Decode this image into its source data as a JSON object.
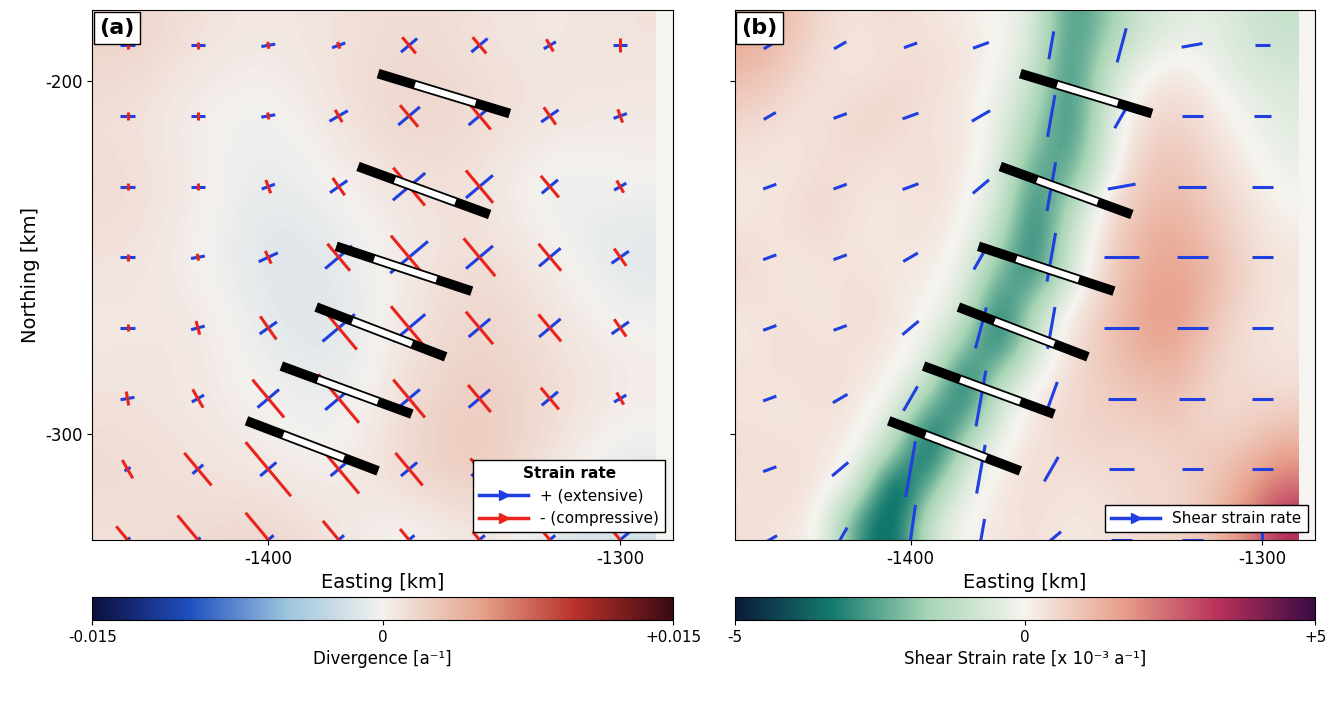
{
  "chart_data": [
    {
      "type": "heatmap",
      "title": "(a)",
      "xlabel": "Easting [km]",
      "ylabel": "Northing [km]",
      "xlim": [
        -1450,
        -1285
      ],
      "ylim": [
        -330,
        -180
      ],
      "xticks": [
        -1400,
        -1300
      ],
      "yticks": [
        -200,
        -300
      ],
      "cells": {
        "x": [
          -1440,
          -1420,
          -1400,
          -1380,
          -1360,
          -1340,
          -1320,
          -1300
        ],
        "y": [
          -190,
          -210,
          -230,
          -250,
          -270,
          -290,
          -310,
          -330
        ],
        "values": [
          [
            0.002,
            0.001,
            0.0005,
            0.001,
            0.0015,
            0.001,
            0.0005,
            0.001
          ],
          [
            0.001,
            0.0,
            -0.0005,
            0.001,
            0.002,
            0.0015,
            0.001,
            0.0005
          ],
          [
            0.0015,
            0.0005,
            -0.001,
            0.0,
            0.001,
            0.001,
            -0.001,
            0.0
          ],
          [
            0.001,
            0.0,
            -0.0015,
            -0.001,
            0.0005,
            0.0015,
            0.0005,
            -0.0015
          ],
          [
            0.0005,
            0.001,
            -0.001,
            -0.0015,
            0.001,
            0.002,
            0.001,
            0.0
          ],
          [
            0.001,
            0.0005,
            0.0,
            -0.001,
            0.0015,
            0.0025,
            0.0015,
            0.0005
          ],
          [
            0.0015,
            0.001,
            0.0005,
            0.0,
            0.002,
            0.003,
            0.001,
            -0.001
          ],
          [
            0.001,
            0.0015,
            0.002,
            0.001,
            -0.001,
            0.001,
            -0.0015,
            -0.002
          ]
        ]
      },
      "colorbar": {
        "label": "Divergence [a⁻¹]",
        "range": [
          -0.015,
          0.015
        ],
        "ticks": [
          -0.015,
          0,
          {
            "value": 0.015,
            "label": "+0.015"
          }
        ]
      },
      "vectors": {
        "x": [
          -1440,
          -1420,
          -1400,
          -1380,
          -1360,
          -1340,
          -1320,
          -1300
        ],
        "y": [
          -190,
          -210,
          -230,
          -250,
          -270,
          -290,
          -310,
          -330
        ],
        "extension": [
          [
            0.002,
            0.002,
            0.002,
            0.002,
            0.003,
            0.003,
            0.002,
            0.002
          ],
          [
            0.002,
            0.002,
            0.002,
            0.003,
            0.004,
            0.004,
            0.003,
            0.002
          ],
          [
            0.002,
            0.002,
            0.002,
            0.003,
            0.006,
            0.005,
            0.003,
            0.002
          ],
          [
            0.002,
            0.002,
            0.003,
            0.005,
            0.007,
            0.005,
            0.004,
            0.003
          ],
          [
            0.002,
            0.002,
            0.003,
            0.006,
            0.006,
            0.004,
            0.004,
            0.003
          ],
          [
            0.002,
            0.002,
            0.004,
            0.005,
            0.004,
            0.004,
            0.003,
            0.002
          ],
          [
            0.001,
            0.002,
            0.003,
            0.003,
            0.003,
            0.003,
            0.002,
            0.002
          ],
          [
            0.001,
            0.001,
            0.002,
            0.002,
            0.002,
            0.002,
            0.002,
            0.004
          ]
        ],
        "compression": [
          [
            0.001,
            0.001,
            0.001,
            0.001,
            0.003,
            0.003,
            0.002,
            0.002
          ],
          [
            0.001,
            0.001,
            0.001,
            0.002,
            0.004,
            0.005,
            0.003,
            0.002
          ],
          [
            0.001,
            0.001,
            0.002,
            0.003,
            0.007,
            0.006,
            0.004,
            0.002
          ],
          [
            0.001,
            0.001,
            0.002,
            0.005,
            0.008,
            0.007,
            0.005,
            0.003
          ],
          [
            0.001,
            0.002,
            0.004,
            0.008,
            0.008,
            0.006,
            0.005,
            0.003
          ],
          [
            0.002,
            0.003,
            0.007,
            0.009,
            0.007,
            0.005,
            0.004,
            0.002
          ],
          [
            0.003,
            0.006,
            0.01,
            0.009,
            0.006,
            0.004,
            0.003,
            0.003
          ],
          [
            0.005,
            0.009,
            0.01,
            0.007,
            0.004,
            0.003,
            0.003,
            0.003
          ]
        ],
        "azimuth": [
          [
            0,
            0,
            10,
            20,
            40,
            40,
            30,
            0
          ],
          [
            0,
            0,
            10,
            30,
            40,
            40,
            35,
            20
          ],
          [
            0,
            0,
            20,
            35,
            40,
            40,
            40,
            30
          ],
          [
            0,
            10,
            25,
            40,
            40,
            40,
            40,
            35
          ],
          [
            0,
            15,
            35,
            40,
            40,
            40,
            40,
            35
          ],
          [
            10,
            30,
            40,
            40,
            40,
            40,
            40,
            30
          ],
          [
            30,
            40,
            40,
            40,
            40,
            40,
            35,
            40
          ],
          [
            40,
            40,
            40,
            40,
            40,
            40,
            40,
            40
          ]
        ]
      },
      "profiles": [
        [
          [
            -1368.8,
            -198.0
          ],
          [
            -1331.4,
            -209.3
          ]
        ],
        [
          [
            -1374.5,
            -224.3
          ],
          [
            -1337.1,
            -237.9
          ]
        ],
        [
          [
            -1380.7,
            -246.9
          ],
          [
            -1342.2,
            -259.6
          ]
        ],
        [
          [
            -1386.4,
            -264.1
          ],
          [
            -1349.6,
            -278.2
          ]
        ],
        [
          [
            -1396.3,
            -280.8
          ],
          [
            -1359.2,
            -294.4
          ]
        ],
        [
          [
            -1406.2,
            -296.3
          ],
          [
            -1368.8,
            -310.5
          ]
        ]
      ],
      "legend": "lower right",
      "legend_title": "Strain rate",
      "series": [
        {
          "name": "+ (extensive)",
          "color": "#1f3fe0"
        },
        {
          "name": "- (compressive)",
          "color": "#e8241c"
        }
      ]
    },
    {
      "type": "heatmap",
      "title": "(b)",
      "xlabel": "Easting [km]",
      "xlim": [
        -1450,
        -1285
      ],
      "ylim": [
        -330,
        -180
      ],
      "xticks": [
        -1400,
        -1300
      ],
      "yticks": [
        -200,
        -300
      ],
      "tick_labels": "x",
      "cells": {
        "x": [
          -1445,
          -1435,
          -1425,
          -1415,
          -1405,
          -1395,
          -1385,
          -1375,
          -1365,
          -1355,
          -1345,
          -1335,
          -1325,
          -1315,
          -1305,
          -1295
        ],
        "y": [
          -185,
          -195,
          -205,
          -215,
          -225,
          -235,
          -245,
          -255,
          -265,
          -275,
          -285,
          -295,
          -305,
          -315,
          -325
        ],
        "values": [
          [
            1.5,
            1.0,
            0.5,
            0.3,
            0.5,
            0.3,
            0.2,
            0.0,
            -0.5,
            -3.0,
            -2.0,
            -0.8,
            -0.5,
            -0.3,
            -0.8,
            -1.0
          ],
          [
            1.2,
            0.8,
            0.4,
            0.2,
            0.4,
            0.5,
            0.3,
            0.0,
            -0.8,
            -3.2,
            -1.2,
            -0.3,
            0.2,
            -0.2,
            -0.6,
            -0.8
          ],
          [
            0.8,
            0.5,
            0.3,
            0.5,
            0.6,
            0.4,
            0.2,
            -0.2,
            -1.2,
            -3.3,
            -0.8,
            0.3,
            0.5,
            0.2,
            -0.3,
            -0.5
          ],
          [
            0.5,
            0.3,
            0.4,
            0.6,
            0.5,
            0.3,
            0.3,
            -0.3,
            -1.8,
            -3.2,
            -0.6,
            0.5,
            0.8,
            0.4,
            0.0,
            -0.4
          ],
          [
            0.3,
            0.2,
            0.5,
            0.4,
            0.3,
            0.5,
            0.2,
            -0.4,
            -2.6,
            -2.6,
            -0.4,
            0.8,
            1.0,
            0.6,
            0.2,
            -0.2
          ],
          [
            0.2,
            0.4,
            0.6,
            0.3,
            0.2,
            0.4,
            0.1,
            -0.6,
            -3.4,
            -1.5,
            0.3,
            1.0,
            1.2,
            0.8,
            0.4,
            0.0
          ],
          [
            0.4,
            0.3,
            0.5,
            0.2,
            0.3,
            0.3,
            0.0,
            -1.3,
            -3.6,
            -0.8,
            0.5,
            1.2,
            1.5,
            1.0,
            0.5,
            0.2
          ],
          [
            0.5,
            0.2,
            0.3,
            0.4,
            0.2,
            0.2,
            -0.3,
            -2.3,
            -3.2,
            -0.6,
            0.6,
            1.4,
            1.6,
            1.2,
            0.6,
            0.3
          ],
          [
            0.3,
            0.4,
            0.2,
            0.5,
            0.3,
            0.0,
            -0.6,
            -3.7,
            -1.3,
            0.2,
            0.8,
            1.5,
            1.8,
            1.0,
            0.5,
            0.2
          ],
          [
            0.2,
            0.5,
            0.3,
            0.4,
            0.2,
            -0.2,
            -2.0,
            -3.5,
            -0.8,
            0.4,
            0.9,
            1.4,
            1.5,
            0.8,
            0.4,
            0.3
          ],
          [
            0.4,
            0.3,
            0.5,
            0.3,
            0.0,
            -0.8,
            -3.9,
            -1.2,
            0.0,
            0.5,
            0.8,
            1.0,
            1.2,
            0.6,
            0.5,
            0.4
          ],
          [
            0.3,
            0.2,
            0.4,
            0.2,
            -0.4,
            -3.0,
            -3.0,
            -0.4,
            0.3,
            0.6,
            0.7,
            0.8,
            0.9,
            0.5,
            0.6,
            0.8
          ],
          [
            0.5,
            0.4,
            0.3,
            0.0,
            -1.5,
            -4.3,
            -0.9,
            0.0,
            0.4,
            0.5,
            0.6,
            0.5,
            0.7,
            0.8,
            1.0,
            1.5
          ],
          [
            0.3,
            0.5,
            0.2,
            -0.5,
            -4.5,
            -2.2,
            -0.3,
            0.2,
            0.5,
            0.3,
            0.4,
            0.6,
            0.5,
            0.9,
            1.5,
            2.5
          ],
          [
            0.4,
            0.3,
            0.0,
            -3.0,
            -4.0,
            -0.8,
            0.0,
            0.3,
            0.4,
            0.2,
            0.3,
            0.5,
            0.6,
            1.0,
            2.0,
            3.5
          ]
        ]
      },
      "colorbar": {
        "label": "Shear Strain rate [x 10⁻³ a⁻¹]",
        "range": [
          -5,
          5
        ],
        "ticks": [
          -5,
          0,
          {
            "value": 5,
            "label": "+5"
          }
        ]
      },
      "vectors": {
        "x": [
          -1440,
          -1420,
          -1400,
          -1380,
          -1360,
          -1340,
          -1320,
          -1300
        ],
        "y": [
          -190,
          -210,
          -230,
          -250,
          -270,
          -290,
          -310,
          -330
        ],
        "magnitude": [
          [
            1.0,
            1.0,
            1.0,
            1.2,
            2.0,
            2.5,
            1.5,
            1.0
          ],
          [
            1.0,
            1.0,
            1.2,
            1.5,
            3.0,
            2.0,
            1.5,
            1.2
          ],
          [
            1.0,
            1.0,
            1.2,
            1.5,
            3.5,
            2.0,
            2.0,
            1.5
          ],
          [
            1.0,
            1.0,
            1.2,
            2.0,
            3.5,
            2.5,
            2.2,
            1.5
          ],
          [
            1.0,
            1.0,
            1.5,
            3.0,
            3.0,
            2.5,
            2.2,
            1.5
          ],
          [
            1.0,
            1.2,
            2.0,
            4.0,
            2.5,
            2.0,
            1.8,
            1.5
          ],
          [
            1.0,
            1.5,
            4.0,
            3.5,
            2.0,
            1.8,
            1.5,
            1.5
          ],
          [
            1.2,
            2.0,
            5.0,
            3.0,
            1.8,
            1.5,
            1.5,
            2.0
          ]
        ],
        "azimuth": [
          [
            30,
            30,
            20,
            20,
            80,
            75,
            10,
            0
          ],
          [
            30,
            20,
            20,
            30,
            80,
            60,
            0,
            0
          ],
          [
            20,
            20,
            20,
            40,
            80,
            10,
            0,
            0
          ],
          [
            20,
            20,
            30,
            60,
            80,
            0,
            0,
            0
          ],
          [
            20,
            20,
            40,
            75,
            80,
            0,
            0,
            0
          ],
          [
            20,
            30,
            60,
            80,
            70,
            0,
            0,
            0
          ],
          [
            20,
            40,
            80,
            80,
            60,
            0,
            0,
            0
          ],
          [
            30,
            60,
            82,
            80,
            40,
            0,
            0,
            90
          ]
        ]
      },
      "profiles": [
        [
          [
            -1368.8,
            -198.0
          ],
          [
            -1331.4,
            -209.3
          ]
        ],
        [
          [
            -1374.5,
            -224.3
          ],
          [
            -1337.1,
            -237.9
          ]
        ],
        [
          [
            -1380.7,
            -246.9
          ],
          [
            -1342.2,
            -259.6
          ]
        ],
        [
          [
            -1386.4,
            -264.1
          ],
          [
            -1349.6,
            -278.2
          ]
        ],
        [
          [
            -1396.3,
            -280.8
          ],
          [
            -1359.2,
            -294.4
          ]
        ],
        [
          [
            -1406.2,
            -296.3
          ],
          [
            -1368.8,
            -310.5
          ]
        ]
      ],
      "legend": "lower right",
      "series": [
        {
          "name": "Shear strain rate",
          "color": "#1f3fe0"
        }
      ]
    }
  ]
}
